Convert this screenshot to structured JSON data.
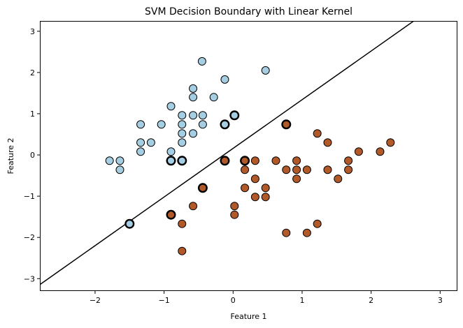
{
  "chart_data": {
    "type": "scatter",
    "title": "SVM Decision Boundary with Linear Kernel",
    "xlabel": "Feature 1",
    "ylabel": "Feature 2",
    "xlim": [
      -2.8,
      3.25
    ],
    "ylim": [
      -3.3,
      3.25
    ],
    "xticks": [
      -2,
      -1,
      0,
      1,
      2,
      3
    ],
    "yticks": [
      -3,
      -2,
      -1,
      0,
      1,
      2,
      3
    ],
    "xtick_labels": [
      "−2",
      "−1",
      "0",
      "1",
      "2",
      "3"
    ],
    "ytick_labels": [
      "−3",
      "−2",
      "−1",
      "0",
      "1",
      "2",
      "3"
    ],
    "grid": false,
    "colors": {
      "class_0": "#a6cee3",
      "class_1": "#b15928",
      "edge": "#000000",
      "boundary": "#000000"
    },
    "decision_boundary": {
      "slope": 1.18,
      "intercept": 0.16
    },
    "series": [
      {
        "points": [
          [
            -0.45,
            2.27
          ],
          [
            0.47,
            2.05
          ],
          [
            -0.12,
            1.83
          ],
          [
            -0.58,
            1.61
          ],
          [
            -0.28,
            1.4
          ],
          [
            -0.58,
            1.4
          ],
          [
            -0.9,
            1.18
          ],
          [
            -0.74,
            0.96
          ],
          [
            -0.58,
            0.96
          ],
          [
            -0.44,
            0.96
          ],
          [
            -1.34,
            0.74
          ],
          [
            -1.04,
            0.74
          ],
          [
            -0.74,
            0.74
          ],
          [
            -0.44,
            0.74
          ],
          [
            -1.34,
            0.3
          ],
          [
            -1.19,
            0.3
          ],
          [
            -0.74,
            0.3
          ],
          [
            -0.74,
            0.52
          ],
          [
            -0.58,
            0.52
          ],
          [
            -1.34,
            0.08
          ],
          [
            -0.9,
            0.08
          ],
          [
            -1.79,
            -0.14
          ],
          [
            -1.64,
            -0.14
          ],
          [
            -1.64,
            -0.36
          ]
        ],
        "support_vectors": [
          [
            0.02,
            0.96
          ],
          [
            -0.12,
            0.74
          ],
          [
            -0.9,
            -0.14
          ],
          [
            -0.74,
            -0.14
          ],
          [
            -1.5,
            -1.67
          ]
        ]
      },
      {
        "points": [
          [
            1.22,
            0.52
          ],
          [
            1.37,
            0.3
          ],
          [
            0.62,
            -0.14
          ],
          [
            0.32,
            -0.14
          ],
          [
            0.92,
            -0.14
          ],
          [
            1.67,
            -0.14
          ],
          [
            1.82,
            0.08
          ],
          [
            2.13,
            0.08
          ],
          [
            2.28,
            0.3
          ],
          [
            0.17,
            -0.36
          ],
          [
            0.77,
            -0.36
          ],
          [
            0.92,
            -0.36
          ],
          [
            1.07,
            -0.36
          ],
          [
            1.37,
            -0.36
          ],
          [
            1.67,
            -0.36
          ],
          [
            0.32,
            -0.58
          ],
          [
            0.92,
            -0.58
          ],
          [
            1.52,
            -0.58
          ],
          [
            0.17,
            -0.8
          ],
          [
            0.47,
            -0.8
          ],
          [
            0.32,
            -1.02
          ],
          [
            0.47,
            -1.02
          ],
          [
            0.02,
            -1.24
          ],
          [
            -0.58,
            -1.24
          ],
          [
            0.02,
            -1.45
          ],
          [
            -0.74,
            -1.67
          ],
          [
            1.22,
            -1.67
          ],
          [
            0.77,
            -1.89
          ],
          [
            1.07,
            -1.89
          ],
          [
            -0.74,
            -2.33
          ]
        ],
        "support_vectors": [
          [
            0.77,
            0.74
          ],
          [
            0.17,
            -0.14
          ],
          [
            -0.12,
            -0.14
          ],
          [
            -0.44,
            -0.8
          ],
          [
            -0.9,
            -1.45
          ]
        ]
      }
    ]
  }
}
